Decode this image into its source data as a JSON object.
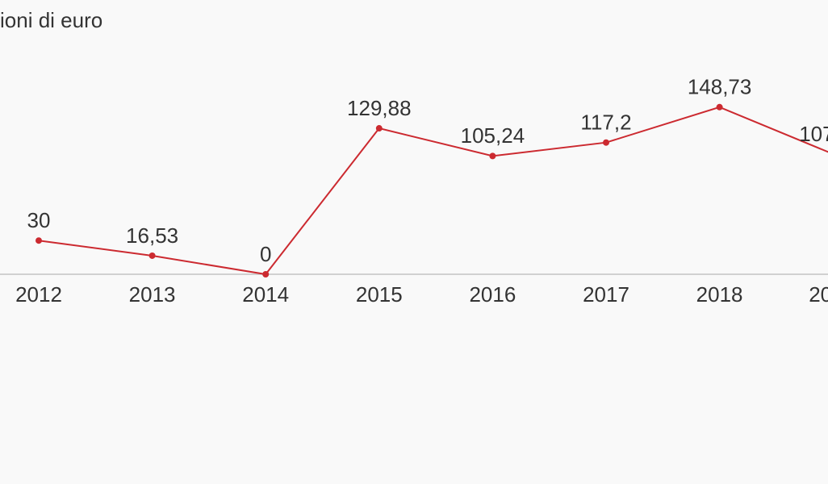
{
  "chart_data": {
    "type": "line",
    "title": "ioni di euro",
    "categories": [
      "2012",
      "2013",
      "2014",
      "2015",
      "2016",
      "2017",
      "2018",
      "20"
    ],
    "values": [
      30,
      16.53,
      0,
      129.88,
      105.24,
      117.2,
      148.73,
      107
    ],
    "value_labels": [
      "30",
      "16,53",
      "0",
      "129,88",
      "105,24",
      "117,2",
      "148,73",
      "107"
    ],
    "color": "#cc2a30",
    "ylim": [
      0,
      150
    ]
  }
}
